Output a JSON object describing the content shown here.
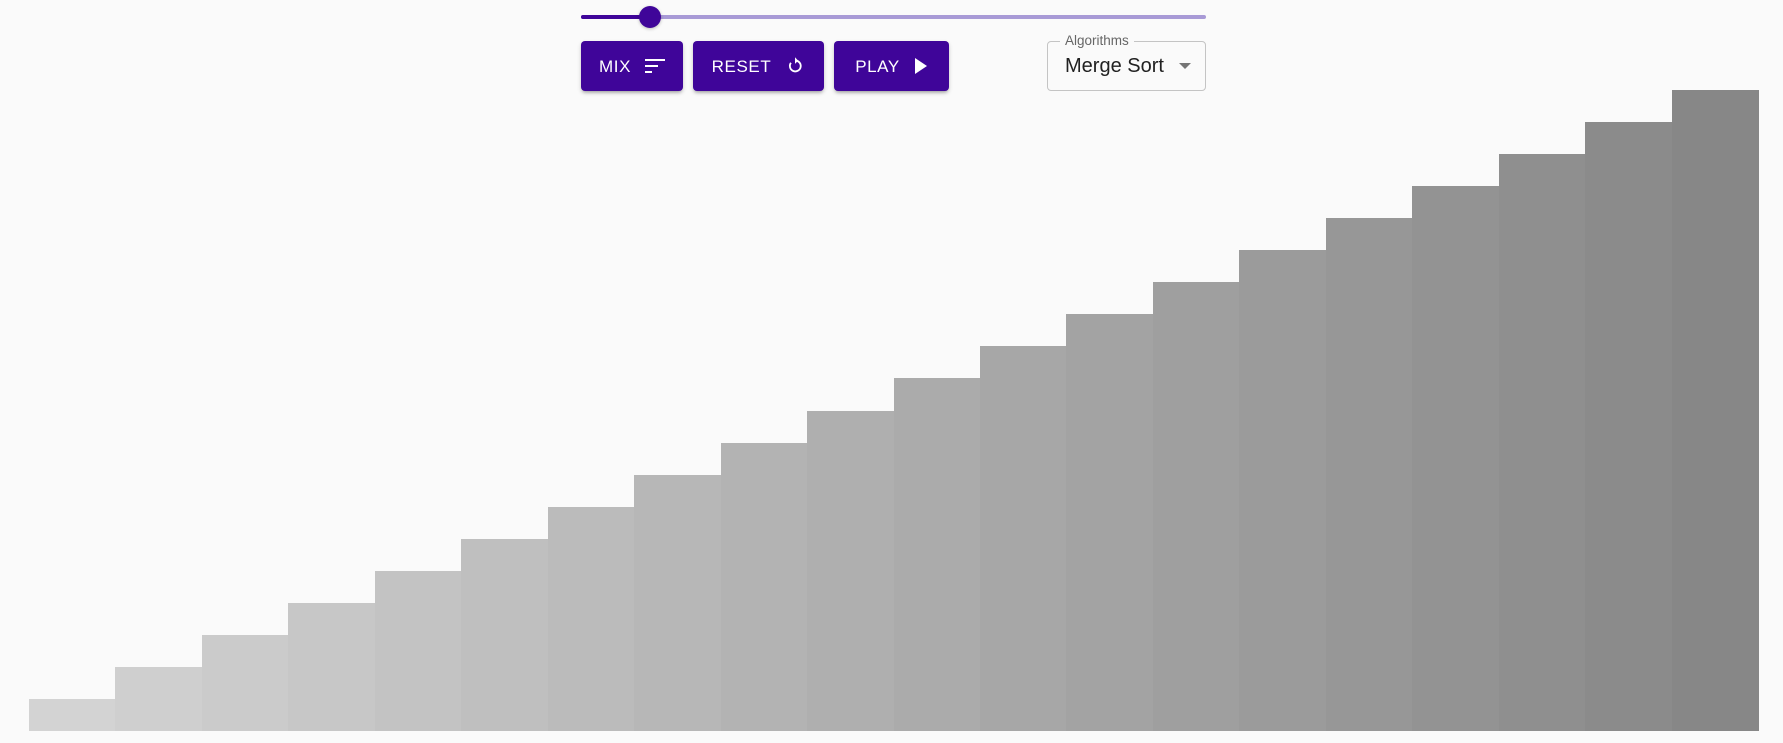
{
  "controls": {
    "speed_slider": {
      "value": 0.11
    },
    "mix_label": "MIX",
    "reset_label": "RESET",
    "play_label": "PLAY",
    "accent_color": "#3f0599",
    "mix_icon": "sort-lines-icon",
    "reset_icon": "refresh-icon",
    "play_icon": "play-arrow-icon"
  },
  "algorithm_select": {
    "legend": "Algorithms",
    "selected": "Merge Sort"
  },
  "bars": {
    "values": [
      1,
      2,
      3,
      4,
      5,
      6,
      7,
      8,
      9,
      10,
      11,
      12,
      13,
      14,
      15,
      16,
      17,
      18,
      19,
      20
    ],
    "max": 20,
    "color_light": "#d3d3d3",
    "color_dark": "#878787"
  }
}
